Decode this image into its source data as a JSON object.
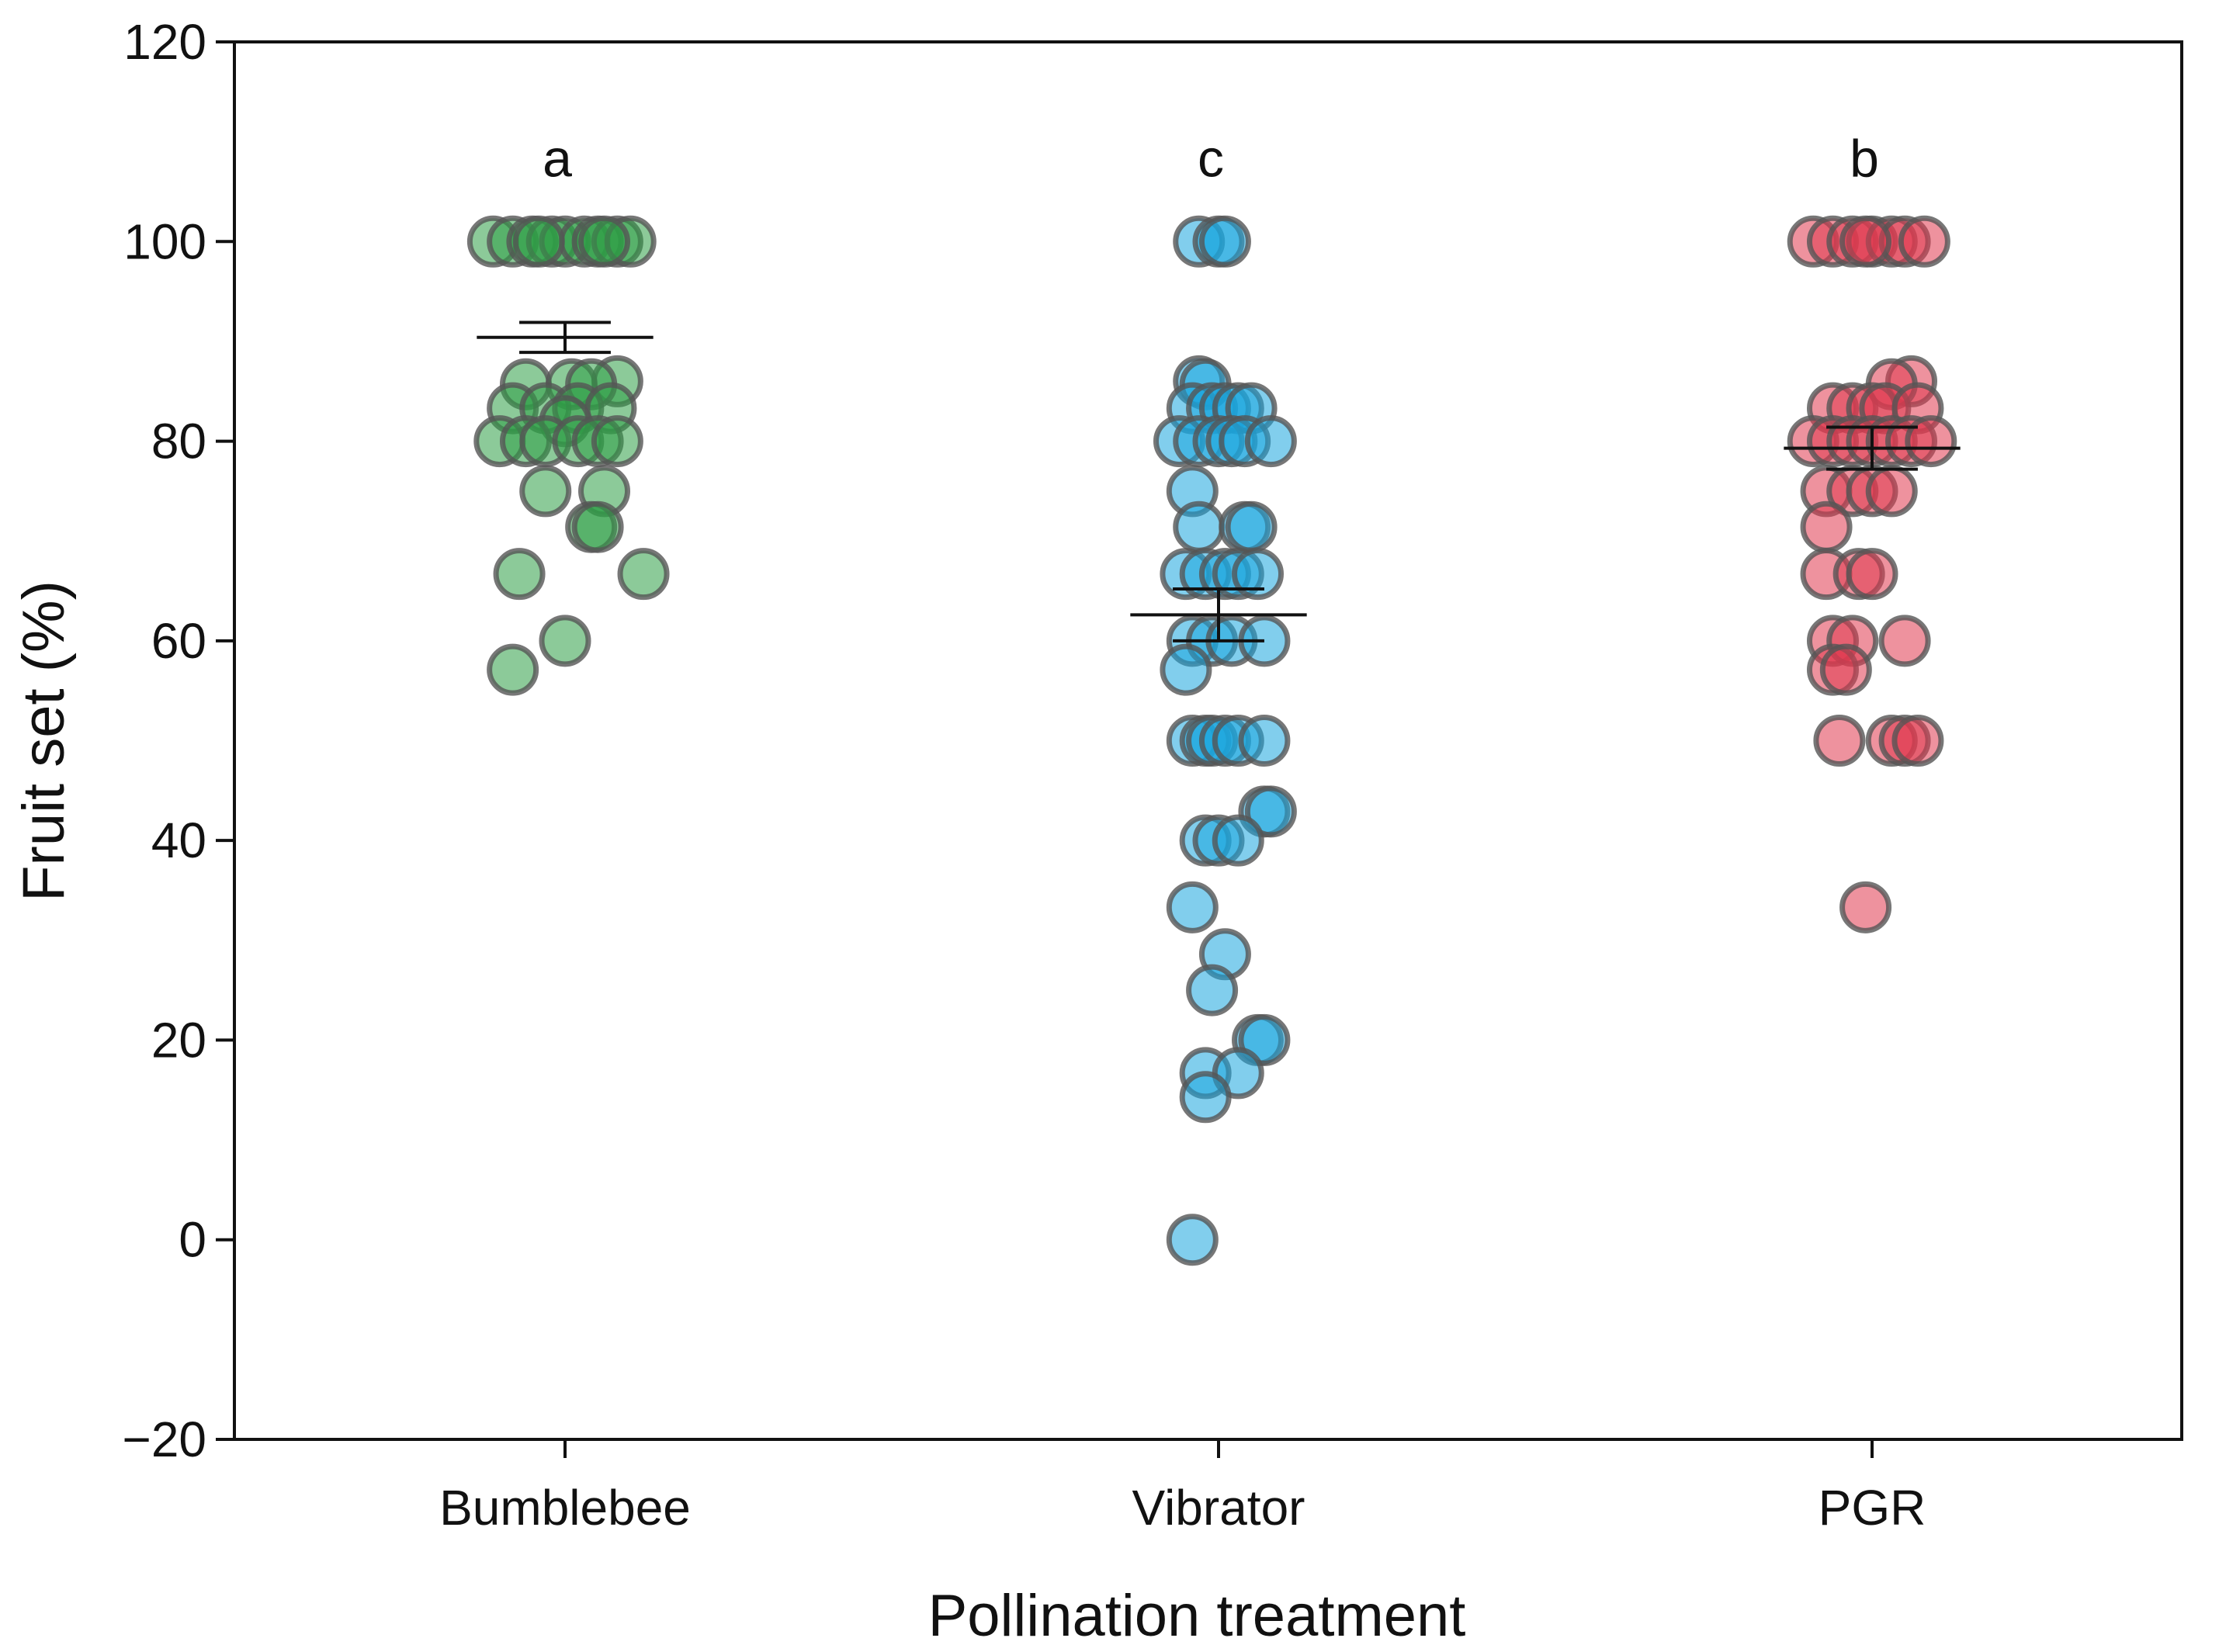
{
  "chart_data": {
    "type": "scatter",
    "subtype": "jittered strip plot with mean and standard error bars",
    "xlabel": "Pollination treatment",
    "ylabel": "Fruit set (%)",
    "ylim": [
      -20,
      120
    ],
    "yticks": [
      -20,
      0,
      20,
      40,
      60,
      80,
      100,
      120
    ],
    "categories": [
      "Bumblebee",
      "Vibrator",
      "PGR"
    ],
    "series": [
      {
        "name": "Bumblebee",
        "color": "#2e9e46",
        "significance_letter": "a",
        "mean": 90.4,
        "se_low": 88.9,
        "se_high": 91.9,
        "points": [
          {
            "y": 100,
            "dx": -0.11
          },
          {
            "y": 100,
            "dx": -0.08
          },
          {
            "y": 100,
            "dx": -0.05
          },
          {
            "y": 100,
            "dx": -0.02
          },
          {
            "y": 100,
            "dx": 0.0
          },
          {
            "y": 100,
            "dx": 0.03
          },
          {
            "y": 100,
            "dx": 0.05
          },
          {
            "y": 100,
            "dx": 0.08
          },
          {
            "y": 100,
            "dx": 0.1
          },
          {
            "y": 100,
            "dx": -0.04
          },
          {
            "y": 100,
            "dx": 0.06
          },
          {
            "y": 86,
            "dx": 0.08
          },
          {
            "y": 85.7,
            "dx": -0.06
          },
          {
            "y": 85.7,
            "dx": 0.01
          },
          {
            "y": 85.7,
            "dx": 0.04
          },
          {
            "y": 83.3,
            "dx": -0.08
          },
          {
            "y": 83.3,
            "dx": -0.03
          },
          {
            "y": 83.3,
            "dx": 0.02
          },
          {
            "y": 83.3,
            "dx": 0.07
          },
          {
            "y": 82,
            "dx": 0.0
          },
          {
            "y": 80,
            "dx": -0.1
          },
          {
            "y": 80,
            "dx": -0.06
          },
          {
            "y": 80,
            "dx": -0.03
          },
          {
            "y": 80,
            "dx": 0.02
          },
          {
            "y": 80,
            "dx": 0.05
          },
          {
            "y": 80,
            "dx": 0.08
          },
          {
            "y": 75,
            "dx": -0.03
          },
          {
            "y": 75,
            "dx": 0.06
          },
          {
            "y": 71.4,
            "dx": 0.04
          },
          {
            "y": 71.4,
            "dx": 0.05
          },
          {
            "y": 66.7,
            "dx": -0.07
          },
          {
            "y": 66.7,
            "dx": 0.12
          },
          {
            "y": 60,
            "dx": 0.0
          },
          {
            "y": 57.1,
            "dx": -0.08
          }
        ]
      },
      {
        "name": "Vibrator",
        "color": "#1aa6de",
        "significance_letter": "c",
        "mean": 62.6,
        "se_low": 60.0,
        "se_high": 65.2,
        "points": [
          {
            "y": 100,
            "dx": -0.03
          },
          {
            "y": 100,
            "dx": 0.0
          },
          {
            "y": 100,
            "dx": 0.01
          },
          {
            "y": 86,
            "dx": -0.03
          },
          {
            "y": 85.7,
            "dx": -0.02
          },
          {
            "y": 83.3,
            "dx": -0.04
          },
          {
            "y": 83.3,
            "dx": -0.01
          },
          {
            "y": 83.3,
            "dx": 0.01
          },
          {
            "y": 83.3,
            "dx": 0.03
          },
          {
            "y": 83.3,
            "dx": 0.05
          },
          {
            "y": 80,
            "dx": -0.06
          },
          {
            "y": 80,
            "dx": -0.03
          },
          {
            "y": 80,
            "dx": 0.0
          },
          {
            "y": 80,
            "dx": 0.02
          },
          {
            "y": 80,
            "dx": 0.04
          },
          {
            "y": 80,
            "dx": 0.08
          },
          {
            "y": 75,
            "dx": -0.04
          },
          {
            "y": 71.4,
            "dx": -0.03
          },
          {
            "y": 71.4,
            "dx": 0.04
          },
          {
            "y": 71.4,
            "dx": 0.05
          },
          {
            "y": 66.7,
            "dx": -0.05
          },
          {
            "y": 66.7,
            "dx": -0.02
          },
          {
            "y": 66.7,
            "dx": 0.01
          },
          {
            "y": 66.7,
            "dx": 0.03
          },
          {
            "y": 66.7,
            "dx": 0.06
          },
          {
            "y": 60,
            "dx": -0.04
          },
          {
            "y": 60,
            "dx": -0.01
          },
          {
            "y": 60,
            "dx": 0.02
          },
          {
            "y": 60,
            "dx": 0.07
          },
          {
            "y": 57.1,
            "dx": -0.05
          },
          {
            "y": 50,
            "dx": -0.04
          },
          {
            "y": 50,
            "dx": -0.02
          },
          {
            "y": 50,
            "dx": -0.01
          },
          {
            "y": 50,
            "dx": 0.01
          },
          {
            "y": 50,
            "dx": 0.03
          },
          {
            "y": 50,
            "dx": 0.07
          },
          {
            "y": 42.9,
            "dx": 0.07
          },
          {
            "y": 42.9,
            "dx": 0.08
          },
          {
            "y": 40,
            "dx": -0.02
          },
          {
            "y": 40,
            "dx": 0.0
          },
          {
            "y": 40,
            "dx": 0.03
          },
          {
            "y": 33.3,
            "dx": -0.04
          },
          {
            "y": 28.6,
            "dx": 0.01
          },
          {
            "y": 25,
            "dx": -0.01
          },
          {
            "y": 20,
            "dx": 0.06
          },
          {
            "y": 20,
            "dx": 0.07
          },
          {
            "y": 16.7,
            "dx": -0.02
          },
          {
            "y": 16.7,
            "dx": 0.03
          },
          {
            "y": 14.3,
            "dx": -0.02
          },
          {
            "y": 0,
            "dx": -0.04
          }
        ]
      },
      {
        "name": "PGR",
        "color": "#e0394f",
        "significance_letter": "b",
        "mean": 79.3,
        "se_low": 77.2,
        "se_high": 81.4,
        "points": [
          {
            "y": 100,
            "dx": -0.09
          },
          {
            "y": 100,
            "dx": -0.06
          },
          {
            "y": 100,
            "dx": -0.03
          },
          {
            "y": 100,
            "dx": 0.0
          },
          {
            "y": 100,
            "dx": 0.03
          },
          {
            "y": 100,
            "dx": 0.05
          },
          {
            "y": 100,
            "dx": 0.08
          },
          {
            "y": 100,
            "dx": -0.01
          },
          {
            "y": 86,
            "dx": 0.06
          },
          {
            "y": 85.7,
            "dx": 0.03
          },
          {
            "y": 83.3,
            "dx": -0.06
          },
          {
            "y": 83.3,
            "dx": -0.03
          },
          {
            "y": 83.3,
            "dx": 0.0
          },
          {
            "y": 83.3,
            "dx": 0.02
          },
          {
            "y": 83.3,
            "dx": 0.07
          },
          {
            "y": 80,
            "dx": -0.09
          },
          {
            "y": 80,
            "dx": -0.06
          },
          {
            "y": 80,
            "dx": -0.03
          },
          {
            "y": 80,
            "dx": 0.0
          },
          {
            "y": 80,
            "dx": 0.03
          },
          {
            "y": 80,
            "dx": 0.06
          },
          {
            "y": 80,
            "dx": 0.09
          },
          {
            "y": 75,
            "dx": -0.07
          },
          {
            "y": 75,
            "dx": -0.03
          },
          {
            "y": 75,
            "dx": 0.0
          },
          {
            "y": 75,
            "dx": 0.03
          },
          {
            "y": 71.4,
            "dx": -0.07
          },
          {
            "y": 66.7,
            "dx": -0.07
          },
          {
            "y": 66.7,
            "dx": -0.02
          },
          {
            "y": 66.7,
            "dx": 0.0
          },
          {
            "y": 60,
            "dx": -0.06
          },
          {
            "y": 60,
            "dx": -0.03
          },
          {
            "y": 60,
            "dx": 0.05
          },
          {
            "y": 57.1,
            "dx": -0.06
          },
          {
            "y": 57.1,
            "dx": -0.04
          },
          {
            "y": 50,
            "dx": -0.05
          },
          {
            "y": 50,
            "dx": 0.03
          },
          {
            "y": 50,
            "dx": 0.05
          },
          {
            "y": 50,
            "dx": 0.07
          },
          {
            "y": 33.3,
            "dx": -0.01
          }
        ]
      }
    ]
  }
}
